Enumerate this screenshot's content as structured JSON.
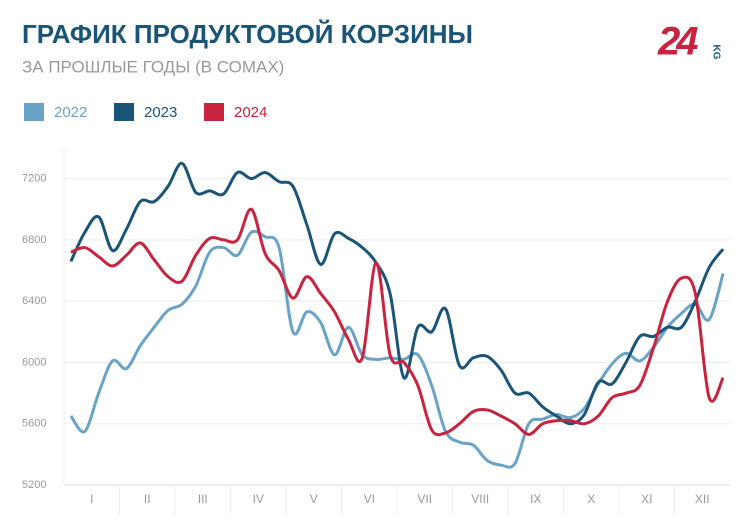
{
  "chart_data": {
    "type": "line",
    "title": "ГРАФИК ПРОДУКТОВОЙ КОРЗИНЫ",
    "subtitle": "ЗА ПРОШЛЫЕ ГОДЫ (В СОМАХ)",
    "logo": {
      "number": "24",
      "suffix": "KG"
    },
    "x": [
      0.125,
      0.375,
      0.625,
      0.875,
      1.125,
      1.375,
      1.625,
      1.875,
      2.125,
      2.375,
      2.625,
      2.875,
      3.125,
      3.375,
      3.625,
      3.875,
      4.125,
      4.375,
      4.625,
      4.875,
      5.125,
      5.375,
      5.625,
      5.875,
      6.125,
      6.375,
      6.625,
      6.875,
      7.125,
      7.375,
      7.625,
      7.875,
      8.125,
      8.375,
      8.625,
      8.875,
      9.125,
      9.375,
      9.625,
      9.875,
      10.125,
      10.375,
      10.625,
      10.875,
      11.125,
      11.375,
      11.625,
      11.875
    ],
    "xlim": [
      0,
      12
    ],
    "xticks": [
      {
        "value": 0.5,
        "label": "I"
      },
      {
        "value": 1.5,
        "label": "II"
      },
      {
        "value": 2.5,
        "label": "III"
      },
      {
        "value": 3.5,
        "label": "IV"
      },
      {
        "value": 4.5,
        "label": "V"
      },
      {
        "value": 5.5,
        "label": "VI"
      },
      {
        "value": 6.5,
        "label": "VII"
      },
      {
        "value": 7.5,
        "label": "VIII"
      },
      {
        "value": 8.5,
        "label": "IX"
      },
      {
        "value": 9.5,
        "label": "X"
      },
      {
        "value": 10.5,
        "label": "XI"
      },
      {
        "value": 11.5,
        "label": "XII"
      }
    ],
    "ylim": [
      5200,
      7400
    ],
    "yticks": [
      5200,
      5600,
      6000,
      6400,
      6800,
      7200
    ],
    "grid": true,
    "series": [
      {
        "name": "2022",
        "color": "#6aa3c8",
        "values": [
          5650,
          5550,
          5800,
          6010,
          5960,
          6110,
          6230,
          6340,
          6380,
          6500,
          6720,
          6750,
          6700,
          6850,
          6820,
          6750,
          6200,
          6330,
          6260,
          6050,
          6230,
          6050,
          6020,
          6030,
          6020,
          6050,
          5850,
          5550,
          5480,
          5460,
          5360,
          5330,
          5340,
          5600,
          5630,
          5660,
          5640,
          5700,
          5860,
          5990,
          6060,
          6010,
          6100,
          6230,
          6320,
          6380,
          6280,
          6580
        ]
      },
      {
        "name": "2023",
        "color": "#1a5577",
        "values": [
          6660,
          6850,
          6950,
          6730,
          6870,
          7050,
          7050,
          7150,
          7300,
          7110,
          7120,
          7100,
          7240,
          7200,
          7240,
          7180,
          7150,
          6900,
          6640,
          6840,
          6810,
          6750,
          6650,
          6450,
          5900,
          6230,
          6200,
          6350,
          5980,
          6030,
          6040,
          5950,
          5800,
          5800,
          5710,
          5650,
          5600,
          5660,
          5870,
          5860,
          6000,
          6170,
          6170,
          6230,
          6230,
          6400,
          6620,
          6740
        ]
      },
      {
        "name": "2024",
        "color": "#c8233f",
        "values": [
          6720,
          6750,
          6690,
          6630,
          6700,
          6780,
          6670,
          6560,
          6530,
          6700,
          6810,
          6800,
          6800,
          7000,
          6710,
          6600,
          6420,
          6560,
          6450,
          6330,
          6150,
          6030,
          6650,
          6050,
          6000,
          5850,
          5560,
          5540,
          5600,
          5680,
          5690,
          5650,
          5600,
          5530,
          5600,
          5620,
          5620,
          5600,
          5650,
          5770,
          5800,
          5850,
          6100,
          6400,
          6550,
          6450,
          5770,
          5900
        ]
      }
    ]
  }
}
